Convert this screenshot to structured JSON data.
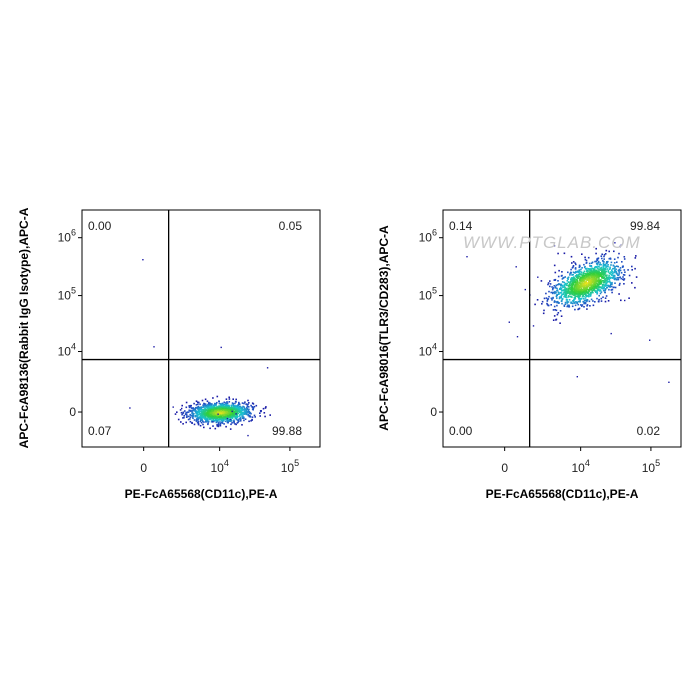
{
  "chart_data": [
    {
      "type": "scatter",
      "xlabel": "PE-FcA65568(CD11c),PE-A",
      "ylabel": "APC-FcA98136(Rabbit IgG Isotype),APC-A",
      "x_scale": "biexponential",
      "y_scale": "biexponential",
      "x_ticks": [
        {
          "base": "0",
          "exp": ""
        },
        {
          "base": "10",
          "exp": "4"
        },
        {
          "base": "10",
          "exp": "5"
        }
      ],
      "y_ticks": [
        {
          "base": "0",
          "exp": ""
        },
        {
          "base": "10",
          "exp": "4"
        },
        {
          "base": "10",
          "exp": "5"
        },
        {
          "base": "10",
          "exp": "6"
        }
      ],
      "quadrants": {
        "upper_left": "0.00",
        "upper_right": "0.05",
        "lower_left": "0.07",
        "lower_right": "99.88"
      },
      "gate": {
        "x": 1200,
        "y": 7000
      },
      "population": {
        "center_x": 10000,
        "center_y": 0,
        "spread_x_decades": 0.22,
        "spread_y": 220
      },
      "watermark": ""
    },
    {
      "type": "scatter",
      "xlabel": "PE-FcA65568(CD11c),PE-A",
      "ylabel": "APC-FcA98016(TLR3/CD283),APC-A",
      "x_scale": "biexponential",
      "y_scale": "biexponential",
      "x_ticks": [
        {
          "base": "0",
          "exp": ""
        },
        {
          "base": "10",
          "exp": "4"
        },
        {
          "base": "10",
          "exp": "5"
        }
      ],
      "y_ticks": [
        {
          "base": "0",
          "exp": ""
        },
        {
          "base": "10",
          "exp": "4"
        },
        {
          "base": "10",
          "exp": "5"
        },
        {
          "base": "10",
          "exp": "6"
        }
      ],
      "quadrants": {
        "upper_left": "0.14",
        "upper_right": "99.84",
        "lower_left": "0.00",
        "lower_right": "0.02"
      },
      "gate": {
        "x": 1200,
        "y": 7000
      },
      "population": {
        "center_x": 12000,
        "center_y": 170000,
        "spread_x_decades": 0.25,
        "spread_y_decades": 0.2
      },
      "watermark": "WWW.PTGLAB.COM"
    }
  ],
  "colors": {
    "density_low": "#1a1aa6",
    "density_mid": "#19c3d1",
    "density_high_mid": "#2fcf3a",
    "density_peak": "#f5e21c",
    "axis": "#000000",
    "gate_line": "#000000"
  }
}
